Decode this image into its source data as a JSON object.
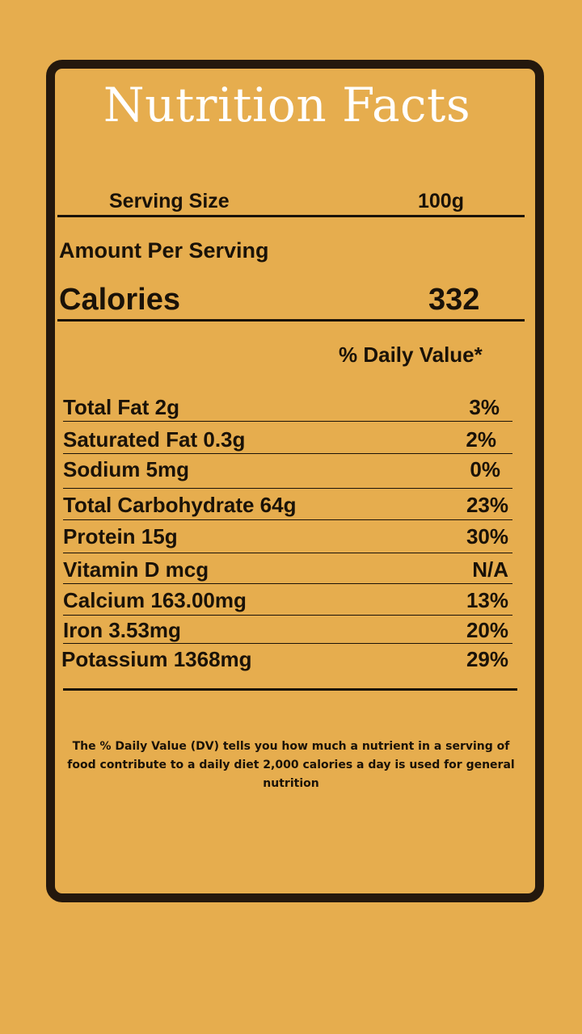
{
  "label": {
    "title": "Nutrition Facts",
    "serving_size_label": "Serving Size",
    "serving_size_value": "100g",
    "amount_per_serving": "Amount Per Serving",
    "calories_label": "Calories",
    "calories_value": "332",
    "daily_value_header": "% Daily Value*",
    "nutrients": [
      {
        "label": "Total Fat 2g",
        "dv": "3%"
      },
      {
        "label": "Saturated Fat 0.3g",
        "dv": "2%"
      },
      {
        "label": "Sodium 5mg",
        "dv": "0%"
      },
      {
        "label": "Total Carbohydrate 64g",
        "dv": "23%"
      },
      {
        "label": "Protein 15g",
        "dv": "30%"
      },
      {
        "label": "Vitamin D mcg",
        "dv": "N/A"
      },
      {
        "label": "Calcium 163.00mg",
        "dv": "13%"
      },
      {
        "label": "Iron 3.53mg",
        "dv": "20%"
      },
      {
        "label": "Potassium 1368mg",
        "dv": "29%"
      }
    ],
    "footnote": "The % Daily Value (DV) tells you how much a nutrient in a serving of food contribute to a daily diet 2,000 calories a day is used for general nutrition"
  },
  "colors": {
    "background": "#E6AD4E",
    "border": "#24180d",
    "title": "#ffffff",
    "text": "#1a1208"
  }
}
